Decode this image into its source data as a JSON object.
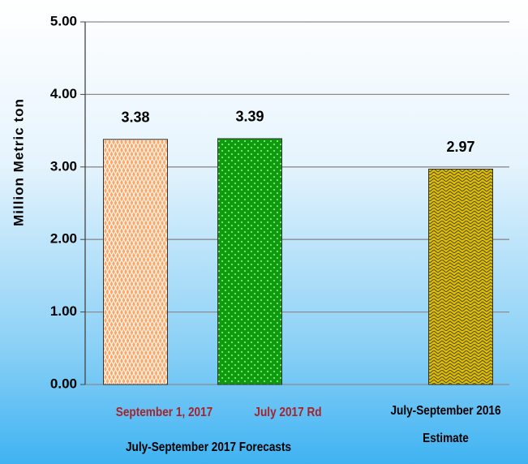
{
  "chart_data": {
    "type": "bar",
    "y_label": "Million Metric ton",
    "categories": [
      "September  1, 2017",
      "July 2017 Rd",
      "July-September  2016 Estimate"
    ],
    "group_label": "July-September 2017 Forecasts",
    "values": [
      3.38,
      3.39,
      2.97
    ],
    "colors": [
      "#f9a86b",
      "#0c9c0c",
      "#d8bc10"
    ],
    "category_label_colors": [
      "#a8222a",
      "#a8222a",
      "#000000"
    ],
    "ylim": [
      0,
      5
    ],
    "yticks": [
      {
        "value": 0,
        "label": "0.00"
      },
      {
        "value": 1,
        "label": "1.00"
      },
      {
        "value": 2,
        "label": "2.00"
      },
      {
        "value": 3,
        "label": "3.00"
      },
      {
        "value": 4,
        "label": "4.00"
      },
      {
        "value": 5,
        "label": "5.00"
      }
    ],
    "grid": true
  }
}
